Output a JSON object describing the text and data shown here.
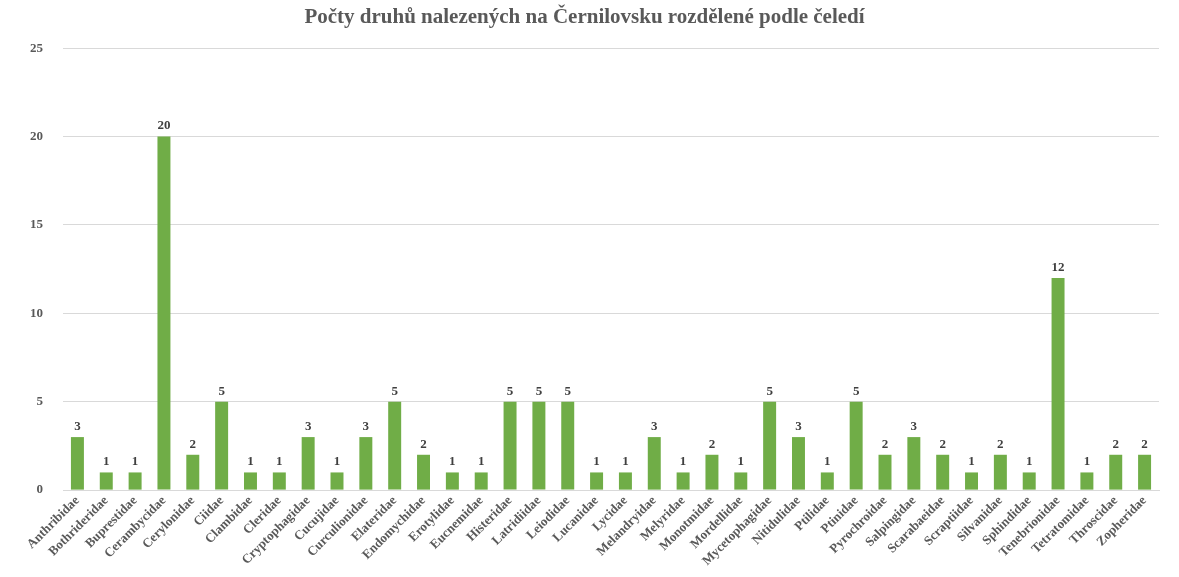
{
  "chart_data": {
    "type": "bar",
    "title": "Počty druhů nalezených na Černilovsku rozdělené podle čeledí",
    "categories": [
      "Anthribidae",
      "Bothrideridae",
      "Buprestidae",
      "Cerambycidae",
      "Cerylonidae",
      "Ciidae",
      "Clambidae",
      "Cleridae",
      "Cryptophagidae",
      "Cucujidae",
      "Curculionidae",
      "Elateridae",
      "Endomychidae",
      "Erotylidae",
      "Eucnemidae",
      "Histeridae",
      "Latridiidae",
      "Leiodidae",
      "Lucanidae",
      "Lycidae",
      "Melandryidae",
      "Melyridae",
      "Monotmidae",
      "Mordellidae",
      "Mycetophagidae",
      "Nitidulidae",
      "Ptilidae",
      "Ptinidae",
      "Pyrochroidae",
      "Salpingidae",
      "Scarabaeidae",
      "Scraptiidae",
      "Silvanidae",
      "Sphindidae",
      "Tenebrionidae",
      "Tetratomidae",
      "Throscidae",
      "Zopheridae"
    ],
    "values": [
      3,
      1,
      1,
      20,
      2,
      5,
      1,
      1,
      3,
      1,
      3,
      5,
      2,
      1,
      1,
      5,
      5,
      5,
      1,
      1,
      3,
      1,
      2,
      1,
      5,
      3,
      1,
      5,
      2,
      3,
      2,
      1,
      2,
      1,
      12,
      1,
      2,
      2
    ],
    "color": "#70ad47",
    "ylim": [
      0,
      25
    ],
    "yticks": [
      0,
      5,
      10,
      15,
      20,
      25
    ],
    "grid": "y",
    "data_labels": true
  }
}
